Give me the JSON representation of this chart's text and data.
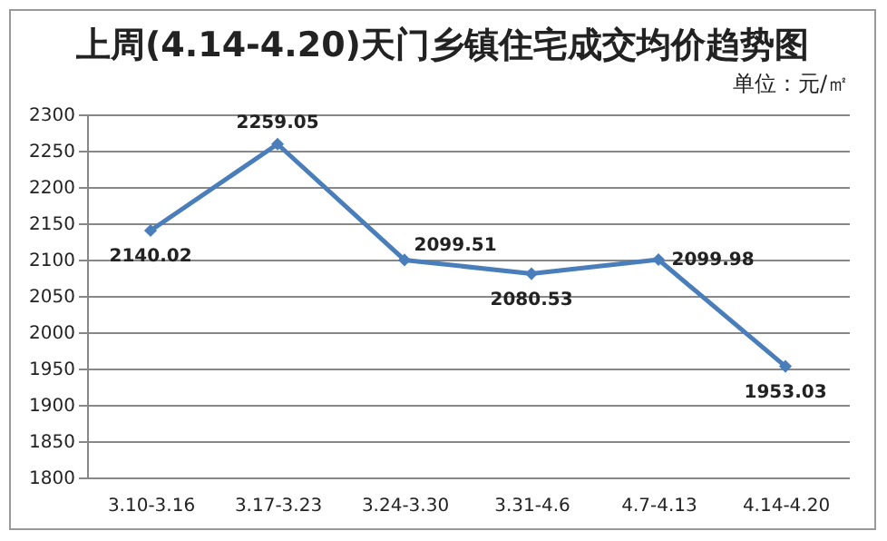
{
  "chart_data": {
    "type": "line",
    "title": "上周(4.14-4.20)天门乡镇住宅成交均价趋势图",
    "subtitle": "单位：元/㎡",
    "categories": [
      "3.10-3.16",
      "3.17-3.23",
      "3.24-3.30",
      "3.31-4.6",
      "4.7-4.13",
      "4.14-4.20"
    ],
    "series": [
      {
        "color": "#4a7ebb",
        "values": [
          2140.02,
          2259.05,
          2099.51,
          2080.53,
          2099.98,
          1953.03
        ]
      }
    ],
    "ylim": [
      1800,
      2300
    ],
    "yticks": [
      1800,
      1850,
      1900,
      1950,
      2000,
      2050,
      2100,
      2150,
      2200,
      2250,
      2300
    ],
    "grid": "y",
    "marker": "diamond",
    "data_labels": true
  }
}
